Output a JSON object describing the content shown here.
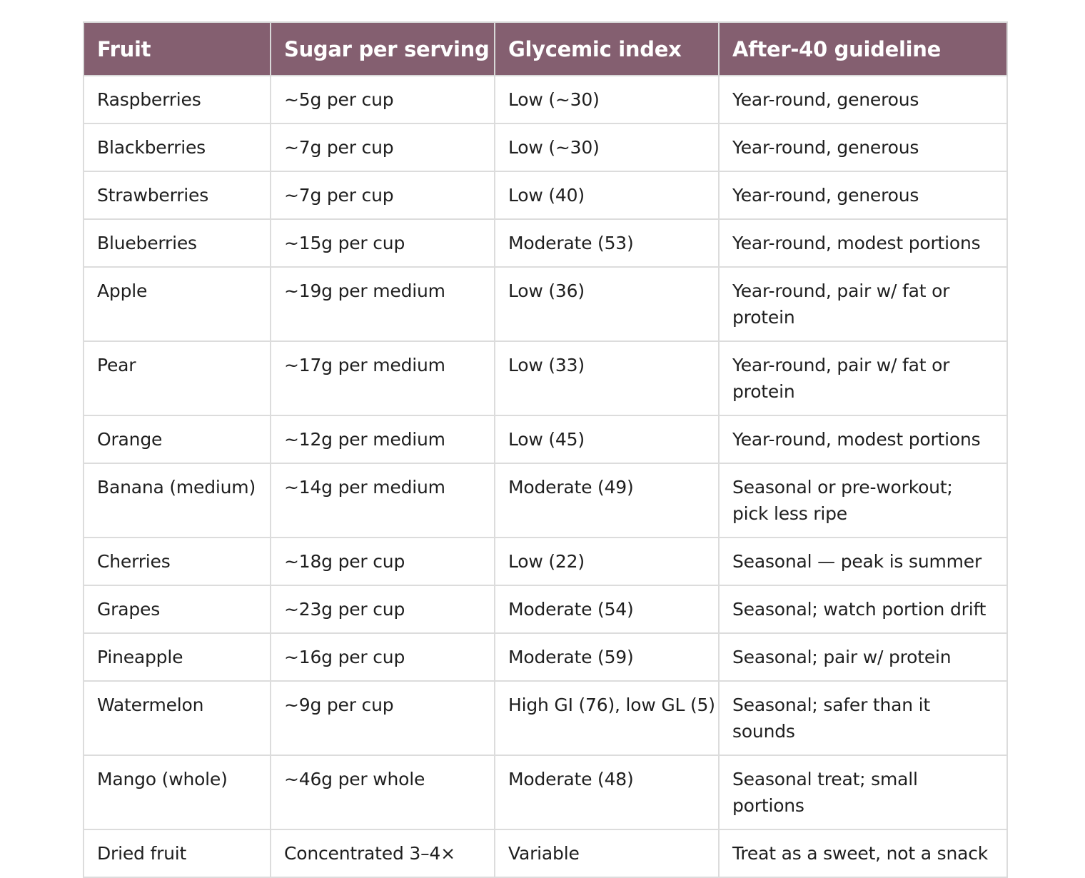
{
  "table": {
    "headers": [
      "Fruit",
      "Sugar per serving",
      "Glycemic index",
      "After-40 guideline"
    ],
    "rows": [
      [
        "Raspberries",
        "~5g per cup",
        "Low (~30)",
        "Year-round, generous"
      ],
      [
        "Blackberries",
        "~7g per cup",
        "Low (~30)",
        "Year-round, generous"
      ],
      [
        "Strawberries",
        "~7g per cup",
        "Low (40)",
        "Year-round, generous"
      ],
      [
        "Blueberries",
        "~15g per cup",
        "Moderate (53)",
        "Year-round, modest portions"
      ],
      [
        "Apple",
        "~19g per medium",
        "Low (36)",
        "Year-round, pair w/ fat or protein"
      ],
      [
        "Pear",
        "~17g per medium",
        "Low (33)",
        "Year-round, pair w/ fat or protein"
      ],
      [
        "Orange",
        "~12g per medium",
        "Low (45)",
        "Year-round, modest portions"
      ],
      [
        "Banana (medium)",
        "~14g per medium",
        "Moderate (49)",
        "Seasonal or pre-workout; pick less ripe"
      ],
      [
        "Cherries",
        "~18g per cup",
        "Low (22)",
        "Seasonal — peak is summer"
      ],
      [
        "Grapes",
        "~23g per cup",
        "Moderate (54)",
        "Seasonal; watch portion drift"
      ],
      [
        "Pineapple",
        "~16g per cup",
        "Moderate (59)",
        "Seasonal; pair w/ protein"
      ],
      [
        "Watermelon",
        "~9g per cup",
        "High GI (76), low GL (5)",
        "Seasonal; safer than it sounds"
      ],
      [
        "Mango (whole)",
        "~46g per whole",
        "Moderate (48)",
        "Seasonal treat; small portions"
      ],
      [
        "Dried fruit",
        "Concentrated 3–4×",
        "Variable",
        "Treat as a sweet, not a snack"
      ]
    ]
  },
  "colors": {
    "header_background": "#845f70",
    "header_text": "#ffffff",
    "border": "#dcdcdc"
  }
}
